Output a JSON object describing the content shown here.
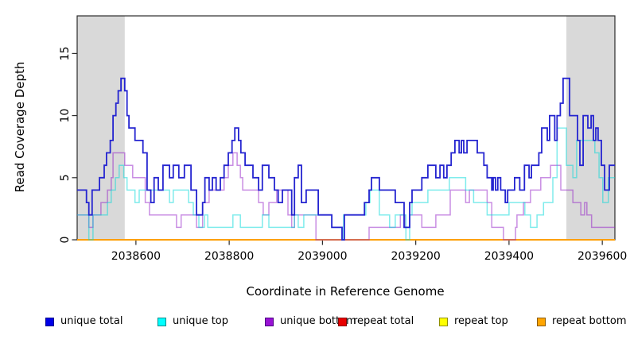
{
  "figure": {
    "x_axis_title": "Coordinate in Reference Genome",
    "y_axis_title": "Read Coverage Depth"
  },
  "axes": {
    "x": {
      "tick_values": [
        2038600,
        2038800,
        2039000,
        2039200,
        2039400,
        2039600
      ],
      "tick_labels": [
        "2038600",
        "2038800",
        "2039000",
        "2039200",
        "2039400",
        "2039600"
      ]
    },
    "y": {
      "tick_values": [
        0,
        5,
        10,
        15
      ],
      "tick_labels": [
        "0",
        "5",
        "10",
        "15"
      ]
    }
  },
  "legend": {
    "items": [
      {
        "label": "unique total",
        "fill": "#0000e8",
        "border": "#00008b"
      },
      {
        "label": "unique top",
        "fill": "#00ffff",
        "border": "#008b8b"
      },
      {
        "label": "unique bottom",
        "fill": "#9912d4",
        "border": "#4b0082"
      },
      {
        "label": "repeat total",
        "fill": "#e80000",
        "border": "#8b0000"
      },
      {
        "label": "repeat top",
        "fill": "#ffff00",
        "border": "#8f8f00"
      },
      {
        "label": "repeat bottom",
        "fill": "#ffa500",
        "border": "#8b5a00"
      }
    ]
  },
  "chart_data": {
    "type": "step",
    "xlabel": "Coordinate in Reference Genome",
    "ylabel": "Read Coverage Depth",
    "xlim": [
      2038474,
      2039627
    ],
    "ylim": [
      0,
      18.03
    ],
    "grid": false,
    "repeat_region_shading": {
      "color": "#d9d9d9",
      "regions": [
        [
          2038474,
          2038576
        ],
        [
          2039523,
          2039627
        ]
      ]
    },
    "series": [
      {
        "name": "repeat total",
        "color": "#e00000",
        "width": 1.4,
        "steps": [
          [
            2038474,
            0
          ]
        ]
      },
      {
        "name": "repeat top",
        "color": "#ffff00",
        "width": 1.4,
        "steps": [
          [
            2038474,
            0
          ]
        ]
      },
      {
        "name": "repeat bottom",
        "color": "#ff9d00",
        "width": 1.7,
        "steps": [
          [
            2038474,
            0
          ]
        ]
      },
      {
        "name": "unique bottom",
        "color": "rgba(148,30,200,0.5)",
        "width": 1.5,
        "steps": [
          [
            2038474,
            2
          ],
          [
            2038499,
            1
          ],
          [
            2038508,
            2
          ],
          [
            2038525,
            3
          ],
          [
            2038539,
            4
          ],
          [
            2038547,
            5
          ],
          [
            2038551,
            7
          ],
          [
            2038576,
            6
          ],
          [
            2038593,
            5
          ],
          [
            2038620,
            3
          ],
          [
            2038629,
            2
          ],
          [
            2038687,
            1
          ],
          [
            2038697,
            2
          ],
          [
            2038730,
            1
          ],
          [
            2038743,
            3
          ],
          [
            2038757,
            4
          ],
          [
            2038789,
            5
          ],
          [
            2038798,
            6
          ],
          [
            2038808,
            7
          ],
          [
            2038817,
            6
          ],
          [
            2038824,
            5
          ],
          [
            2038829,
            4
          ],
          [
            2038863,
            3
          ],
          [
            2038873,
            2
          ],
          [
            2038885,
            3
          ],
          [
            2038902,
            4
          ],
          [
            2038926,
            2
          ],
          [
            2038934,
            1
          ],
          [
            2038940,
            2
          ],
          [
            2038986,
            0
          ],
          [
            2039100,
            1
          ],
          [
            2039167,
            2
          ],
          [
            2039177,
            1
          ],
          [
            2039187,
            2
          ],
          [
            2039213,
            1
          ],
          [
            2039243,
            2
          ],
          [
            2039274,
            4
          ],
          [
            2039307,
            3
          ],
          [
            2039315,
            4
          ],
          [
            2039353,
            3
          ],
          [
            2039363,
            1
          ],
          [
            2039388,
            0
          ],
          [
            2039414,
            1
          ],
          [
            2039417,
            2
          ],
          [
            2039431,
            3
          ],
          [
            2039446,
            4
          ],
          [
            2039468,
            5
          ],
          [
            2039489,
            6
          ],
          [
            2039511,
            4
          ],
          [
            2039537,
            3
          ],
          [
            2039554,
            2
          ],
          [
            2039562,
            3
          ],
          [
            2039567,
            2
          ],
          [
            2039577,
            1
          ]
        ]
      },
      {
        "name": "unique top",
        "color": "rgba(0,218,218,0.5)",
        "width": 1.5,
        "steps": [
          [
            2038474,
            2
          ],
          [
            2038499,
            0
          ],
          [
            2038508,
            2
          ],
          [
            2038539,
            3
          ],
          [
            2038547,
            4
          ],
          [
            2038556,
            5
          ],
          [
            2038564,
            6
          ],
          [
            2038574,
            5
          ],
          [
            2038581,
            4
          ],
          [
            2038598,
            3
          ],
          [
            2038607,
            4
          ],
          [
            2038672,
            3
          ],
          [
            2038680,
            4
          ],
          [
            2038713,
            3
          ],
          [
            2038723,
            2
          ],
          [
            2038735,
            1
          ],
          [
            2038747,
            2
          ],
          [
            2038754,
            1
          ],
          [
            2038808,
            2
          ],
          [
            2038824,
            1
          ],
          [
            2038871,
            2
          ],
          [
            2038885,
            1
          ],
          [
            2038940,
            2
          ],
          [
            2038948,
            1
          ],
          [
            2038960,
            2
          ],
          [
            2039020,
            1
          ],
          [
            2039042,
            0
          ],
          [
            2039045,
            2
          ],
          [
            2039093,
            3
          ],
          [
            2039102,
            4
          ],
          [
            2039122,
            2
          ],
          [
            2039144,
            1
          ],
          [
            2039156,
            2
          ],
          [
            2039179,
            0
          ],
          [
            2039187,
            2
          ],
          [
            2039192,
            3
          ],
          [
            2039226,
            4
          ],
          [
            2039272,
            5
          ],
          [
            2039307,
            4
          ],
          [
            2039324,
            3
          ],
          [
            2039353,
            2
          ],
          [
            2039400,
            3
          ],
          [
            2039434,
            2
          ],
          [
            2039446,
            1
          ],
          [
            2039460,
            2
          ],
          [
            2039474,
            3
          ],
          [
            2039494,
            5
          ],
          [
            2039503,
            9
          ],
          [
            2039523,
            6
          ],
          [
            2039537,
            5
          ],
          [
            2039545,
            8
          ],
          [
            2039584,
            7
          ],
          [
            2039593,
            5
          ],
          [
            2039601,
            3
          ],
          [
            2039613,
            5
          ]
        ]
      },
      {
        "name": "unique total",
        "color": "#2424d0",
        "width": 1.8,
        "steps": [
          [
            2038474,
            4
          ],
          [
            2038494,
            3
          ],
          [
            2038499,
            2
          ],
          [
            2038506,
            4
          ],
          [
            2038522,
            5
          ],
          [
            2038532,
            6
          ],
          [
            2038537,
            7
          ],
          [
            2038545,
            8
          ],
          [
            2038551,
            10
          ],
          [
            2038557,
            11
          ],
          [
            2038562,
            12
          ],
          [
            2038568,
            13
          ],
          [
            2038576,
            12
          ],
          [
            2038581,
            10
          ],
          [
            2038585,
            9
          ],
          [
            2038598,
            8
          ],
          [
            2038615,
            7
          ],
          [
            2038624,
            4
          ],
          [
            2038632,
            3
          ],
          [
            2038639,
            5
          ],
          [
            2038648,
            4
          ],
          [
            2038658,
            6
          ],
          [
            2038672,
            5
          ],
          [
            2038680,
            6
          ],
          [
            2038692,
            5
          ],
          [
            2038704,
            6
          ],
          [
            2038718,
            4
          ],
          [
            2038730,
            2
          ],
          [
            2038743,
            3
          ],
          [
            2038748,
            5
          ],
          [
            2038757,
            4
          ],
          [
            2038764,
            5
          ],
          [
            2038772,
            4
          ],
          [
            2038781,
            5
          ],
          [
            2038789,
            6
          ],
          [
            2038798,
            7
          ],
          [
            2038806,
            8
          ],
          [
            2038812,
            9
          ],
          [
            2038820,
            8
          ],
          [
            2038825,
            7
          ],
          [
            2038834,
            6
          ],
          [
            2038851,
            5
          ],
          [
            2038863,
            4
          ],
          [
            2038871,
            6
          ],
          [
            2038885,
            5
          ],
          [
            2038897,
            4
          ],
          [
            2038905,
            3
          ],
          [
            2038914,
            4
          ],
          [
            2038934,
            2
          ],
          [
            2038940,
            5
          ],
          [
            2038948,
            6
          ],
          [
            2038955,
            3
          ],
          [
            2038965,
            4
          ],
          [
            2038991,
            2
          ],
          [
            2039020,
            1
          ],
          [
            2039042,
            0
          ],
          [
            2039047,
            2
          ],
          [
            2039090,
            3
          ],
          [
            2039100,
            4
          ],
          [
            2039105,
            5
          ],
          [
            2039122,
            4
          ],
          [
            2039156,
            3
          ],
          [
            2039175,
            1
          ],
          [
            2039187,
            3
          ],
          [
            2039192,
            4
          ],
          [
            2039213,
            5
          ],
          [
            2039226,
            6
          ],
          [
            2039243,
            5
          ],
          [
            2039252,
            6
          ],
          [
            2039260,
            5
          ],
          [
            2039267,
            6
          ],
          [
            2039276,
            7
          ],
          [
            2039284,
            8
          ],
          [
            2039293,
            7
          ],
          [
            2039298,
            8
          ],
          [
            2039303,
            7
          ],
          [
            2039310,
            8
          ],
          [
            2039332,
            7
          ],
          [
            2039346,
            6
          ],
          [
            2039353,
            5
          ],
          [
            2039363,
            4
          ],
          [
            2039366,
            5
          ],
          [
            2039371,
            4
          ],
          [
            2039376,
            5
          ],
          [
            2039382,
            4
          ],
          [
            2039392,
            3
          ],
          [
            2039397,
            4
          ],
          [
            2039412,
            5
          ],
          [
            2039423,
            4
          ],
          [
            2039433,
            6
          ],
          [
            2039443,
            5
          ],
          [
            2039448,
            6
          ],
          [
            2039464,
            7
          ],
          [
            2039470,
            9
          ],
          [
            2039482,
            8
          ],
          [
            2039487,
            10
          ],
          [
            2039498,
            8
          ],
          [
            2039503,
            10
          ],
          [
            2039510,
            11
          ],
          [
            2039516,
            13
          ],
          [
            2039530,
            10
          ],
          [
            2039547,
            8
          ],
          [
            2039552,
            6
          ],
          [
            2039559,
            10
          ],
          [
            2039569,
            9
          ],
          [
            2039576,
            10
          ],
          [
            2039581,
            8
          ],
          [
            2039586,
            9
          ],
          [
            2039591,
            8
          ],
          [
            2039598,
            6
          ],
          [
            2039605,
            4
          ],
          [
            2039615,
            6
          ]
        ]
      }
    ]
  }
}
